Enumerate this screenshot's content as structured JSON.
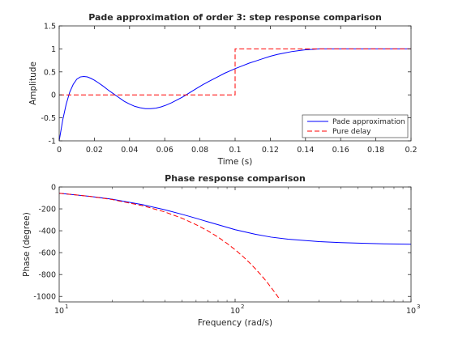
{
  "chart_data": [
    {
      "type": "line",
      "title": "Pade approximation of order 3: step response comparison",
      "xlabel": "Time (s)",
      "ylabel": "Amplitude",
      "xlim": [
        0,
        0.2
      ],
      "ylim": [
        -1,
        1.5
      ],
      "xticks": [
        0,
        0.02,
        0.04,
        0.06,
        0.08,
        0.1,
        0.12,
        0.14,
        0.16,
        0.18,
        0.2
      ],
      "xtick_labels": [
        "0",
        "0.02",
        "0.04",
        "0.06",
        "0.08",
        "0.1",
        "0.12",
        "0.14",
        "0.16",
        "0.18",
        "0.2"
      ],
      "yticks": [
        -1,
        -0.5,
        0,
        0.5,
        1,
        1.5
      ],
      "ytick_labels": [
        "-1",
        "-0.5",
        "0",
        "0.5",
        "1",
        "1.5"
      ],
      "grid": false,
      "legend_position": "bottom-right",
      "series": [
        {
          "name": "Pade approximation",
          "color": "#0000ff",
          "style": "solid",
          "x": [
            0,
            0.002,
            0.004,
            0.006,
            0.008,
            0.01,
            0.012,
            0.014,
            0.016,
            0.018,
            0.02,
            0.022,
            0.025,
            0.028,
            0.031,
            0.034,
            0.037,
            0.04,
            0.043,
            0.046,
            0.049,
            0.052,
            0.055,
            0.058,
            0.061,
            0.064,
            0.067,
            0.07,
            0.073,
            0.076,
            0.079,
            0.082,
            0.085,
            0.088,
            0.091,
            0.094,
            0.097,
            0.1,
            0.104,
            0.108,
            0.112,
            0.116,
            0.12,
            0.124,
            0.128,
            0.132,
            0.136,
            0.14,
            0.144,
            0.148,
            0.152,
            0.16,
            0.17,
            0.18,
            0.19,
            0.2
          ],
          "y": [
            -1,
            -0.55,
            -0.2,
            0.06,
            0.23,
            0.34,
            0.39,
            0.4,
            0.39,
            0.36,
            0.32,
            0.27,
            0.19,
            0.1,
            0.02,
            -0.06,
            -0.14,
            -0.2,
            -0.25,
            -0.28,
            -0.3,
            -0.3,
            -0.29,
            -0.26,
            -0.22,
            -0.17,
            -0.11,
            -0.05,
            0.02,
            0.09,
            0.16,
            0.23,
            0.29,
            0.35,
            0.41,
            0.47,
            0.52,
            0.57,
            0.63,
            0.69,
            0.74,
            0.79,
            0.84,
            0.88,
            0.91,
            0.94,
            0.96,
            0.98,
            0.99,
            1.0,
            1.0,
            1.0,
            1.0,
            1.0,
            1.0,
            1.0
          ]
        },
        {
          "name": "Pure delay",
          "color": "#ff0000",
          "style": "dashed",
          "x": [
            0,
            0.1,
            0.1,
            0.2
          ],
          "y": [
            0,
            0,
            1,
            1
          ]
        }
      ]
    },
    {
      "type": "line",
      "title": "Phase response comparison",
      "xlabel": "Frequency (rad/s)",
      "ylabel": "Phase (degree)",
      "xscale": "log",
      "xlim": [
        10,
        1000
      ],
      "ylim": [
        -1050,
        0
      ],
      "xticks": [
        10,
        100,
        1000
      ],
      "xtick_labels": [
        "10",
        "10",
        "10"
      ],
      "xtick_exponents": [
        "1",
        "2",
        "3"
      ],
      "yticks": [
        -1000,
        -800,
        -600,
        -400,
        -200,
        0
      ],
      "ytick_labels": [
        "-1000",
        "-800",
        "-600",
        "-400",
        "-200",
        "0"
      ],
      "grid": false,
      "series": [
        {
          "color": "#0000ff",
          "style": "solid",
          "x": [
            10,
            15,
            20,
            30,
            40,
            50,
            60,
            70,
            80,
            100,
            130,
            160,
            200,
            300,
            400,
            500,
            700,
            1000
          ],
          "y": [
            -57,
            -86,
            -112,
            -163,
            -209,
            -250,
            -286,
            -318,
            -345,
            -390,
            -432,
            -458,
            -477,
            -499,
            -508,
            -513,
            -519,
            -523
          ]
        },
        {
          "color": "#ff0000",
          "style": "dashed",
          "x": [
            10,
            15,
            20,
            30,
            40,
            50,
            60,
            70,
            80,
            90,
            100,
            110,
            120,
            130,
            140,
            150,
            160,
            170,
            180
          ],
          "y": [
            -57,
            -86,
            -115,
            -172,
            -229,
            -286,
            -344,
            -401,
            -458,
            -516,
            -573,
            -630,
            -688,
            -745,
            -802,
            -859,
            -917,
            -974,
            -1031
          ]
        }
      ]
    }
  ]
}
